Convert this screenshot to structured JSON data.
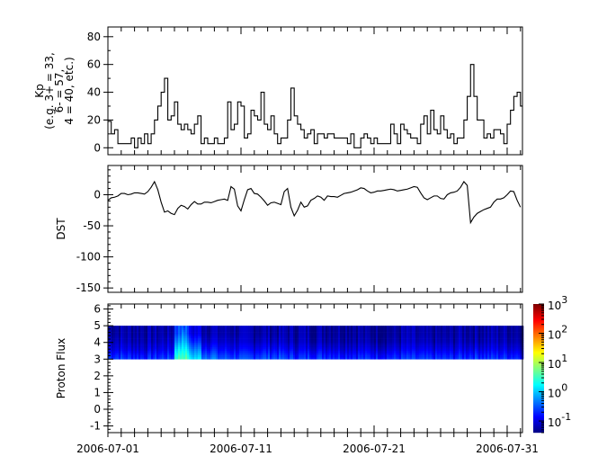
{
  "chart_data": [
    {
      "type": "line",
      "step": true,
      "ylabel_lines": [
        "Kp",
        "(e.g. 3+ = 33,",
        "6- = 57,",
        "4 = 40, etc.)"
      ],
      "x_start": "2006-07-01T00:00",
      "x_interval_hours": 6,
      "ylim": [
        -5,
        87
      ],
      "yticks": [
        0,
        20,
        40,
        60,
        80
      ],
      "values": [
        19,
        10,
        13,
        3,
        3,
        3,
        3,
        7,
        0,
        7,
        3,
        10,
        3,
        10,
        20,
        30,
        40,
        50,
        20,
        23,
        33,
        17,
        13,
        17,
        13,
        10,
        17,
        23,
        3,
        7,
        3,
        3,
        7,
        3,
        3,
        7,
        33,
        13,
        17,
        33,
        30,
        7,
        10,
        27,
        23,
        20,
        40,
        17,
        13,
        23,
        10,
        3,
        7,
        7,
        20,
        43,
        23,
        17,
        13,
        7,
        10,
        13,
        3,
        10,
        10,
        7,
        10,
        10,
        7,
        7,
        7,
        7,
        3,
        10,
        0,
        0,
        7,
        10,
        7,
        3,
        7,
        3,
        3,
        3,
        3,
        17,
        10,
        3,
        17,
        13,
        10,
        7,
        7,
        3,
        17,
        23,
        10,
        27,
        13,
        10,
        23,
        13,
        7,
        10,
        3,
        7,
        7,
        20,
        37,
        60,
        37,
        20,
        20,
        7,
        10,
        7,
        13,
        13,
        10,
        3,
        17,
        27,
        37,
        40,
        30
      ]
    },
    {
      "type": "line",
      "ylabel": "DST",
      "x_start": "2006-07-01T00:00",
      "x_interval_hours": 6,
      "ylim": [
        -157,
        47
      ],
      "yticks": [
        0,
        -50,
        -100,
        -150
      ],
      "values": [
        -9,
        -5,
        -4,
        -2,
        2,
        2,
        0,
        1,
        3,
        3,
        2,
        1,
        5,
        12,
        21,
        8,
        -12,
        -28,
        -26,
        -30,
        -32,
        -22,
        -17,
        -19,
        -23,
        -16,
        -11,
        -15,
        -15,
        -12,
        -12,
        -13,
        -11,
        -9,
        -8,
        -7,
        -9,
        13,
        9,
        -18,
        -26,
        -8,
        8,
        10,
        2,
        1,
        -4,
        -10,
        -17,
        -13,
        -12,
        -14,
        -16,
        5,
        10,
        -20,
        -34,
        -25,
        -12,
        -20,
        -18,
        -9,
        -6,
        -2,
        -4,
        -9,
        -2,
        -3,
        -3,
        -4,
        -1,
        2,
        3,
        4,
        6,
        8,
        11,
        10,
        6,
        3,
        4,
        6,
        6,
        7,
        8,
        9,
        8,
        6,
        7,
        8,
        9,
        11,
        13,
        12,
        3,
        -5,
        -8,
        -5,
        -2,
        -2,
        -6,
        -7,
        0,
        3,
        4,
        6,
        12,
        21,
        15,
        -45,
        -36,
        -30,
        -27,
        -24,
        -22,
        -20,
        -12,
        -7,
        -7,
        -5,
        0,
        6,
        5,
        -9,
        -20
      ]
    },
    {
      "type": "heatmap",
      "ylabel": "Proton Flux",
      "ylim": [
        -1.4,
        6.3
      ],
      "yticks": [
        -1,
        0,
        1,
        2,
        3,
        4,
        5,
        6
      ],
      "y_bins": [
        3,
        3.5,
        4,
        4.5,
        5
      ],
      "x_start": "2006-07-01",
      "x_interval_days": 1,
      "colorbar": {
        "scale": "log",
        "range": [
          0.04,
          1000
        ],
        "ticks": [
          "10^-1",
          "10^0",
          "10^1",
          "10^2",
          "10^3"
        ],
        "colormap": "jet"
      },
      "values": [
        [
          0.25,
          0.22,
          0.2,
          0.22,
          0.25,
          3.5,
          1.2,
          0.5,
          0.3,
          0.28,
          0.25,
          0.3,
          0.3,
          0.25,
          0.22,
          0.25,
          0.25,
          0.22,
          0.22,
          0.2,
          0.2,
          0.2,
          0.22,
          0.2,
          0.2,
          0.2,
          0.22,
          0.25,
          0.22,
          0.22,
          0.22
        ],
        [
          0.12,
          0.11,
          0.1,
          0.11,
          0.12,
          1.5,
          0.5,
          0.2,
          0.14,
          0.13,
          0.12,
          0.14,
          0.14,
          0.12,
          0.11,
          0.12,
          0.12,
          0.11,
          0.11,
          0.1,
          0.1,
          0.1,
          0.11,
          0.1,
          0.1,
          0.1,
          0.11,
          0.12,
          0.11,
          0.11,
          0.11
        ],
        [
          0.08,
          0.07,
          0.07,
          0.07,
          0.08,
          0.6,
          0.2,
          0.1,
          0.08,
          0.08,
          0.07,
          0.08,
          0.08,
          0.07,
          0.07,
          0.07,
          0.07,
          0.07,
          0.07,
          0.06,
          0.06,
          0.06,
          0.07,
          0.06,
          0.06,
          0.06,
          0.07,
          0.07,
          0.07,
          0.07,
          0.07
        ],
        [
          0.06,
          0.06,
          0.06,
          0.06,
          0.06,
          0.3,
          0.1,
          0.07,
          0.06,
          0.06,
          0.06,
          0.06,
          0.06,
          0.06,
          0.06,
          0.06,
          0.06,
          0.06,
          0.06,
          0.05,
          0.05,
          0.05,
          0.06,
          0.05,
          0.05,
          0.05,
          0.06,
          0.06,
          0.06,
          0.06,
          0.06
        ]
      ]
    }
  ],
  "x_axis": {
    "range": [
      "2006-07-01T00:00",
      "2006-08-01T04:00"
    ],
    "tick_labels": [
      "2006-07-01",
      "2006-07-11",
      "2006-07-21",
      "2006-07-31"
    ],
    "tick_days": [
      0,
      10,
      20,
      30
    ]
  },
  "colorbar_labels": [
    {
      "base": "10",
      "exp": "3"
    },
    {
      "base": "10",
      "exp": "2"
    },
    {
      "base": "10",
      "exp": "1"
    },
    {
      "base": "10",
      "exp": "0"
    },
    {
      "base": "10",
      "exp": "-1"
    }
  ]
}
